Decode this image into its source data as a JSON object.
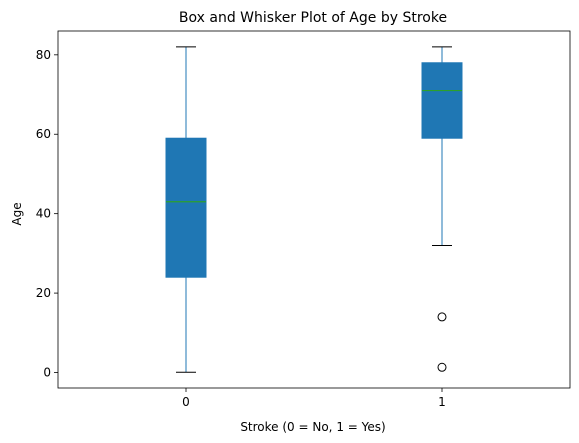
{
  "chart_data": {
    "type": "box",
    "title": "Box and Whisker Plot of Age by Stroke",
    "xlabel": "Stroke (0 = No, 1 = Yes)",
    "ylabel": "Age",
    "categories": [
      "0",
      "1"
    ],
    "ylim": [
      -3.9,
      86
    ],
    "yticks": [
      0,
      20,
      40,
      60,
      80
    ],
    "grid": false,
    "boxes": [
      {
        "category": "0",
        "whisker_low": 0.08,
        "q1": 24,
        "median": 43,
        "q3": 59,
        "whisker_high": 82,
        "outliers": []
      },
      {
        "category": "1",
        "whisker_low": 32,
        "q1": 59,
        "median": 71,
        "q3": 78,
        "whisker_high": 82,
        "outliers": [
          14,
          1.32
        ]
      }
    ],
    "colors": {
      "box_fill": "#1f77b4",
      "median": "#2ca02c",
      "whisker": "#1f77b4",
      "cap": "#000000",
      "outlier": "#000000"
    }
  }
}
